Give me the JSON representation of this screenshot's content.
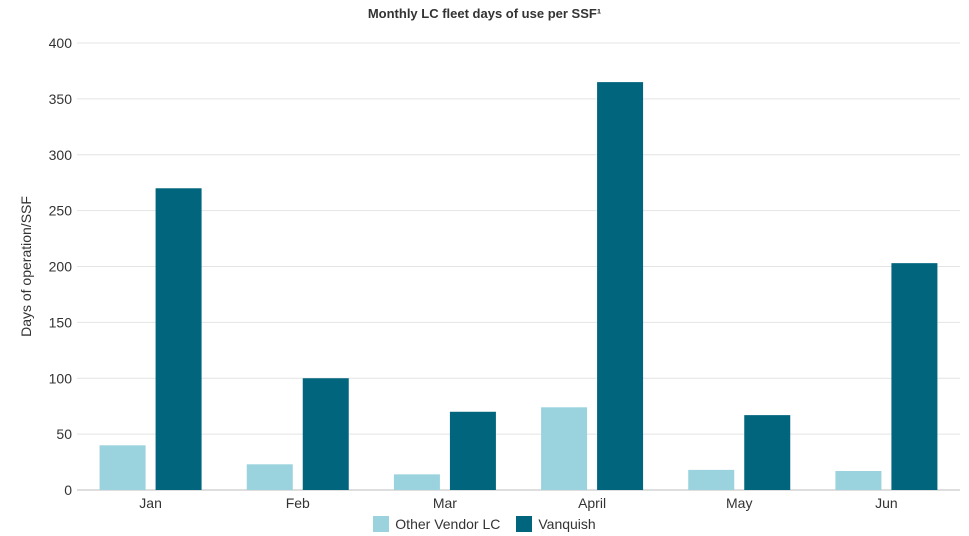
{
  "colors": {
    "other_vendor": "#9ad2dd",
    "vanquish": "#00657d",
    "grid": "#e4e4e4",
    "axis": "#bdbdbd"
  },
  "chart_data": {
    "type": "bar",
    "title": "Monthly LC fleet days of use per SSF¹",
    "xlabel": "",
    "ylabel": "Days of operation/SSF",
    "categories": [
      "Jan",
      "Feb",
      "Mar",
      "April",
      "May",
      "Jun"
    ],
    "ylim": [
      0,
      400
    ],
    "yticks": [
      0,
      50,
      100,
      150,
      200,
      250,
      300,
      350,
      400
    ],
    "grid": true,
    "legend_position": "bottom",
    "series": [
      {
        "name": "Other Vendor LC",
        "values": [
          40,
          23,
          14,
          74,
          18,
          17
        ]
      },
      {
        "name": "Vanquish",
        "values": [
          270,
          100,
          70,
          365,
          67,
          203
        ]
      }
    ]
  }
}
